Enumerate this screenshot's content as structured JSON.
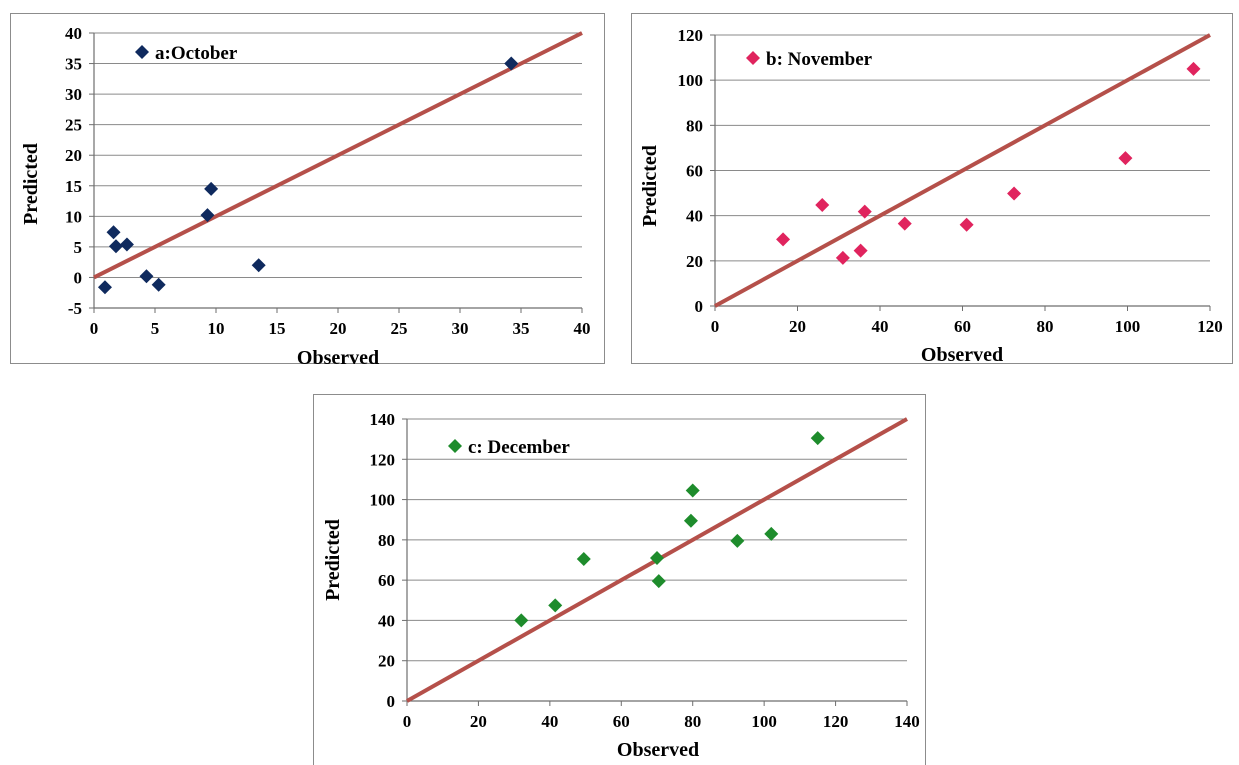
{
  "chart_data": [
    {
      "type": "scatter",
      "legend": "a:October",
      "xlabel": "Observed",
      "ylabel": "Predicted",
      "xlim": [
        0,
        40
      ],
      "ylim": [
        -5,
        40
      ],
      "xticks": [
        0,
        5,
        10,
        15,
        20,
        25,
        30,
        35,
        40
      ],
      "yticks": [
        -5,
        0,
        5,
        10,
        15,
        20,
        25,
        30,
        35,
        40
      ],
      "grid": "horizontal",
      "legend_position": "top-left",
      "marker_color": "#0f2a5e",
      "line_color": "#b5504a",
      "reference_line": [
        [
          0,
          0
        ],
        [
          40,
          40
        ]
      ],
      "points": [
        [
          0.9,
          -1.6
        ],
        [
          1.6,
          7.4
        ],
        [
          1.8,
          5.1
        ],
        [
          2.7,
          5.4
        ],
        [
          4.3,
          0.2
        ],
        [
          5.3,
          -1.2
        ],
        [
          9.3,
          10.2
        ],
        [
          9.6,
          14.5
        ],
        [
          13.5,
          2.0
        ],
        [
          34.2,
          35.0
        ]
      ]
    },
    {
      "type": "scatter",
      "legend": "b: November",
      "xlabel": "Observed",
      "ylabel": "Predicted",
      "xlim": [
        0,
        120
      ],
      "ylim": [
        0,
        120
      ],
      "xticks": [
        0,
        20,
        40,
        60,
        80,
        100,
        120
      ],
      "yticks": [
        0,
        20,
        40,
        60,
        80,
        100,
        120
      ],
      "grid": "horizontal",
      "legend_position": "top-left",
      "marker_color": "#e0245e",
      "line_color": "#b5504a",
      "reference_line": [
        [
          0,
          0
        ],
        [
          120,
          120
        ]
      ],
      "points": [
        [
          16.5,
          29.5
        ],
        [
          26,
          44.7
        ],
        [
          31,
          21.3
        ],
        [
          35.3,
          24.5
        ],
        [
          36.3,
          41.8
        ],
        [
          46,
          36.5
        ],
        [
          61,
          36
        ],
        [
          72.5,
          49.8
        ],
        [
          99.5,
          65.5
        ],
        [
          116,
          105
        ]
      ]
    },
    {
      "type": "scatter",
      "legend": "c: December",
      "xlabel": "Observed",
      "ylabel": "Predicted",
      "xlim": [
        0,
        140
      ],
      "ylim": [
        0,
        140
      ],
      "xticks": [
        0,
        20,
        40,
        60,
        80,
        100,
        120,
        140
      ],
      "yticks": [
        0,
        20,
        40,
        60,
        80,
        100,
        120,
        140
      ],
      "grid": "horizontal",
      "legend_position": "top-left",
      "marker_color": "#1e8c2c",
      "line_color": "#b5504a",
      "reference_line": [
        [
          0,
          0
        ],
        [
          140,
          140
        ]
      ],
      "points": [
        [
          32,
          40
        ],
        [
          41.5,
          47.5
        ],
        [
          49.5,
          70.5
        ],
        [
          70,
          71
        ],
        [
          70.5,
          59.5
        ],
        [
          79.5,
          89.5
        ],
        [
          80,
          104.5
        ],
        [
          92.5,
          79.5
        ],
        [
          102,
          83
        ],
        [
          115,
          130.5
        ]
      ]
    }
  ]
}
